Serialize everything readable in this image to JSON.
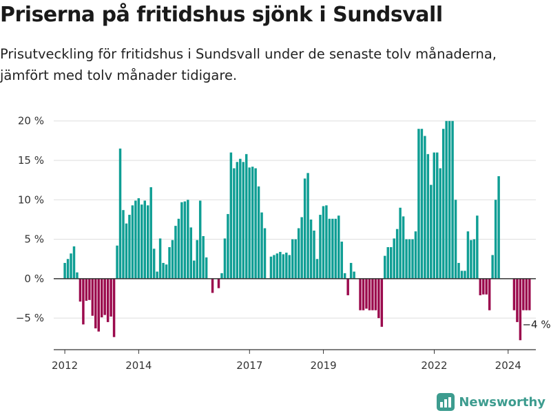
{
  "header": {
    "title": "Priserna på fritidshus sjönk i Sundsvall",
    "subtitle": "Prisutveckling för fritidshus i Sundsvall under de senaste tolv månaderna, jämfört med tolv månader tidigare."
  },
  "brand": {
    "name": "Newsworthy",
    "color": "#3d9c8f",
    "icon": "newsworthy-logo-icon"
  },
  "colors": {
    "positive": "#0f9e94",
    "negative": "#9b0a4d",
    "grid": "#dddddd",
    "axis": "#333333"
  },
  "chart_data": {
    "type": "bar",
    "x_label": "",
    "y_label": "",
    "y_unit": "%",
    "ylim": [
      -9,
      20.5
    ],
    "yticks": [
      -5,
      0,
      5,
      10,
      15,
      20
    ],
    "ytick_labels": [
      "−5 %",
      "0 %",
      "5 %",
      "10 %",
      "15 %",
      "20 %"
    ],
    "xlim": [
      2011.7,
      2024.75
    ],
    "xticks": [
      2012,
      2014,
      2017,
      2019,
      2022,
      2024
    ],
    "xtick_labels": [
      "2012",
      "2014",
      "2017",
      "2019",
      "2022",
      "2024"
    ],
    "grid": true,
    "annotation": {
      "text": "−4 %",
      "x": 2024.46,
      "y": -4
    },
    "series": [
      {
        "start_year": 2012.0,
        "step_years": 0.0833,
        "values": [
          2,
          2.5,
          3.2,
          4.1,
          0.8,
          -2.9,
          -5.8,
          -2.8,
          -2.7,
          -4.7,
          -6.3,
          -6.7,
          -4.9,
          -4.6,
          -5.5,
          -4.8,
          -7.4,
          4.2,
          16.5,
          8.7,
          7,
          8.1,
          9.3,
          9.9,
          10.2,
          9.4,
          9.9,
          9.3,
          11.6,
          3.8,
          0.9,
          5.1,
          2,
          1.8,
          4,
          4.9,
          6.7,
          7.6,
          9.7,
          9.8,
          10,
          6.5,
          2.3,
          4.9,
          9.9,
          5.4,
          2.7,
          0,
          -1.8,
          0,
          -1.2,
          0.7,
          5.1,
          8.2,
          16,
          14,
          14.8,
          15.2,
          14.8,
          15.8,
          14.1,
          14.2,
          14,
          11.7,
          8.4,
          6.4,
          0,
          2.8,
          3,
          3.2,
          3.4,
          3.1,
          3.3,
          3,
          5,
          5,
          6.4,
          7.8,
          12.7,
          13.4,
          7.5,
          6.1,
          2.5,
          8.1,
          9.2,
          9.3,
          7.6,
          7.6,
          7.6,
          8,
          4.7,
          0.7,
          -2.1,
          2,
          0.9,
          0,
          -4,
          -4,
          -3.8,
          -4,
          -4,
          -4,
          -5,
          -6.1,
          2.9,
          4,
          4,
          5.1,
          6.3,
          9,
          7.9,
          5,
          5,
          5,
          6,
          19,
          19,
          18.1,
          15.8,
          11.9,
          16,
          16,
          14,
          19,
          20,
          20,
          20,
          10,
          2,
          1,
          1,
          6,
          4.9,
          5,
          8,
          -2.1,
          -2,
          -2,
          -4,
          3,
          10,
          13,
          0,
          0,
          0,
          0,
          -4,
          -5.5,
          -7.8,
          -4,
          -4,
          -4
        ]
      }
    ]
  }
}
